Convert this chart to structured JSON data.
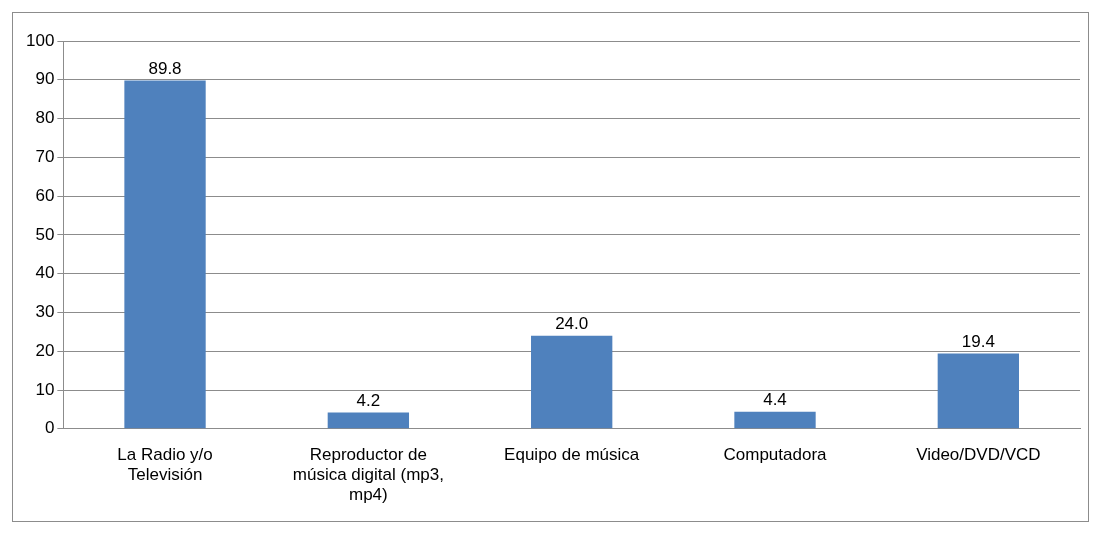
{
  "chart_data": {
    "type": "bar",
    "categories": [
      "La Radio y/o Televisión",
      "Reproductor de música digital (mp3, mp4)",
      "Equipo de música",
      "Computadora",
      "Video/DVD/VCD"
    ],
    "values": [
      89.8,
      4.2,
      24.0,
      4.4,
      19.4
    ],
    "value_labels": [
      "89.8",
      "4.2",
      "24.0",
      "4.4",
      "19.4"
    ],
    "color": "#4f81bd",
    "ylim": [
      0,
      100
    ],
    "yticks": [
      0,
      10,
      20,
      30,
      40,
      50,
      60,
      70,
      80,
      90,
      100
    ],
    "grid": "y",
    "legend": false
  }
}
